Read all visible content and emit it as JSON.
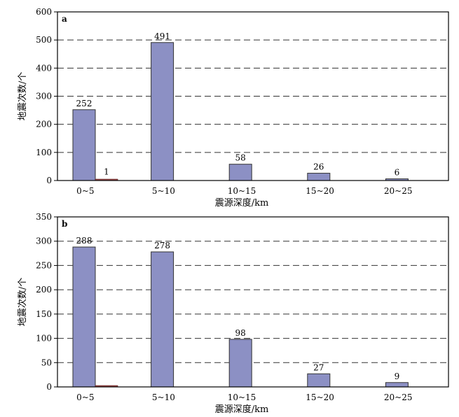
{
  "chart_data": [
    {
      "type": "bar",
      "panel_label": "a",
      "categories": [
        "0~5",
        "5~10",
        "10~15",
        "15~20",
        "20~25"
      ],
      "series": [
        {
          "values": [
            252,
            491,
            58,
            26,
            6
          ],
          "color": "#8c90c4"
        },
        {
          "values": [
            1,
            0,
            0,
            0,
            0
          ],
          "color": "#a04a4a"
        }
      ],
      "data_labels": [
        "252",
        "491",
        "58",
        "26",
        "6"
      ],
      "secondary_labels": [
        "1",
        "",
        "",
        "",
        ""
      ],
      "yticks": [
        "0",
        "100",
        "200",
        "300",
        "400",
        "500",
        "600"
      ],
      "ylim": [
        0,
        600
      ],
      "xlabel": "震源深度/km",
      "ylabel": "地震次数/个",
      "grid": "horizontal dashed"
    },
    {
      "type": "bar",
      "panel_label": "b",
      "categories": [
        "0~5",
        "5~10",
        "10~15",
        "15~20",
        "20~25"
      ],
      "series": [
        {
          "values": [
            288,
            278,
            98,
            27,
            9
          ],
          "color": "#8c90c4"
        },
        {
          "values": [
            2,
            0,
            0,
            0,
            0
          ],
          "color": "#a04a4a"
        }
      ],
      "data_labels": [
        "288",
        "278",
        "98",
        "27",
        "9"
      ],
      "secondary_labels": [
        "",
        "",
        "",
        "",
        ""
      ],
      "yticks": [
        "0",
        "50",
        "100",
        "150",
        "200",
        "250",
        "300",
        "350"
      ],
      "ylim": [
        0,
        350
      ],
      "xlabel": "震源深度/km",
      "ylabel": "地震次数/个",
      "grid": "horizontal dashed"
    }
  ]
}
